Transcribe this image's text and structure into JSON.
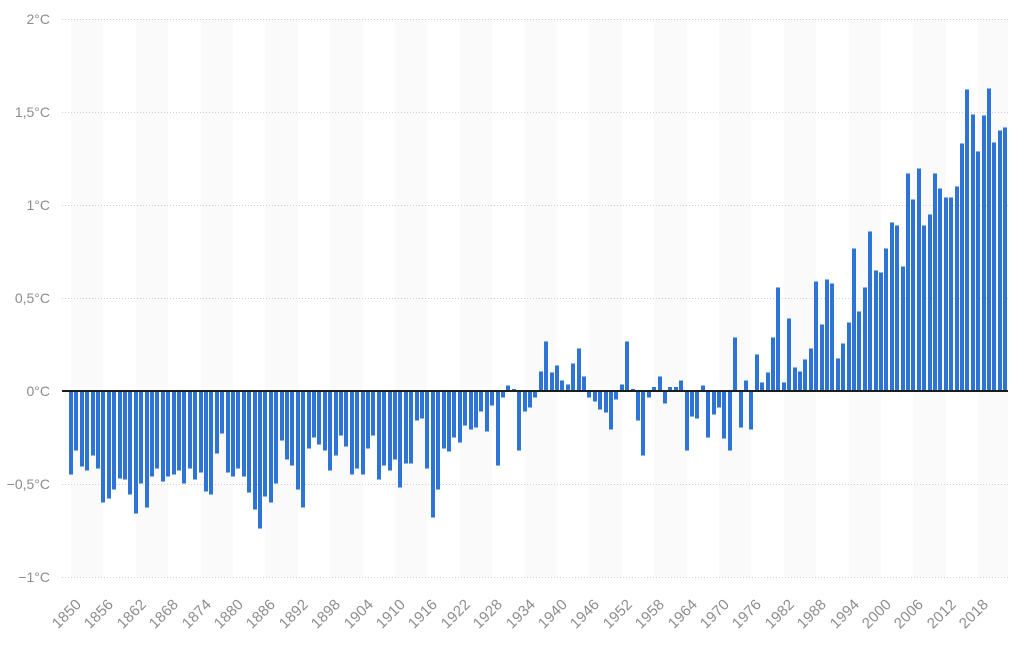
{
  "chart_data": {
    "type": "bar",
    "title": "",
    "xlabel": "",
    "ylabel": "",
    "unit": "°C",
    "ylim": [
      -1,
      2
    ],
    "grid": "dotted horizontal lines at every 0.5°C, alternating light vertical 6-year bands",
    "legend": "none",
    "y_ticks": [
      {
        "label": "2°C",
        "value": 2
      },
      {
        "label": "1,5°C",
        "value": 1.5
      },
      {
        "label": "1°C",
        "value": 1
      },
      {
        "label": "0,5°C",
        "value": 0.5
      },
      {
        "label": "0°C",
        "value": 0
      },
      {
        "label": "−0,5°C",
        "value": -0.5
      },
      {
        "label": "−1°C",
        "value": -1
      }
    ],
    "x_ticks": [
      1850,
      1856,
      1862,
      1868,
      1874,
      1880,
      1886,
      1892,
      1898,
      1904,
      1910,
      1916,
      1922,
      1928,
      1934,
      1940,
      1946,
      1952,
      1958,
      1964,
      1970,
      1976,
      1982,
      1988,
      1994,
      2000,
      2006,
      2012,
      2018
    ],
    "start_year": 1850,
    "end_year": 2023,
    "values": [
      -0.45,
      -0.32,
      -0.41,
      -0.43,
      -0.35,
      -0.42,
      -0.6,
      -0.58,
      -0.53,
      -0.47,
      -0.48,
      -0.56,
      -0.66,
      -0.5,
      -0.63,
      -0.46,
      -0.42,
      -0.49,
      -0.46,
      -0.45,
      -0.43,
      -0.5,
      -0.42,
      -0.48,
      -0.44,
      -0.54,
      -0.56,
      -0.34,
      -0.23,
      -0.44,
      -0.46,
      -0.42,
      -0.46,
      -0.55,
      -0.64,
      -0.74,
      -0.57,
      -0.6,
      -0.5,
      -0.27,
      -0.37,
      -0.4,
      -0.53,
      -0.63,
      -0.31,
      -0.25,
      -0.29,
      -0.32,
      -0.43,
      -0.35,
      -0.24,
      -0.3,
      -0.45,
      -0.42,
      -0.45,
      -0.31,
      -0.24,
      -0.48,
      -0.4,
      -0.43,
      -0.37,
      -0.52,
      -0.39,
      -0.39,
      -0.16,
      -0.15,
      -0.42,
      -0.68,
      -0.53,
      -0.31,
      -0.33,
      -0.25,
      -0.28,
      -0.19,
      -0.21,
      -0.2,
      -0.11,
      -0.22,
      -0.08,
      -0.4,
      -0.04,
      0.03,
      0.01,
      -0.32,
      -0.11,
      -0.09,
      -0.04,
      0.11,
      0.27,
      0.1,
      0.14,
      0.06,
      0.04,
      0.15,
      0.23,
      0.08,
      -0.04,
      -0.06,
      -0.1,
      -0.12,
      -0.21,
      -0.05,
      0.04,
      0.27,
      0.01,
      -0.16,
      -0.35,
      -0.04,
      0.02,
      0.08,
      -0.07,
      0.02,
      0.02,
      0.06,
      -0.32,
      -0.14,
      -0.15,
      0.03,
      -0.25,
      -0.13,
      -0.09,
      -0.26,
      -0.32,
      0.29,
      -0.2,
      0.06,
      -0.21,
      0.2,
      0.05,
      0.1,
      0.29,
      0.56,
      0.05,
      0.39,
      0.13,
      0.11,
      0.17,
      0.23,
      0.59,
      0.36,
      0.6,
      0.58,
      0.18,
      0.26,
      0.37,
      0.77,
      0.43,
      0.56,
      0.86,
      0.65,
      0.64,
      0.77,
      0.91,
      0.89,
      0.67,
      1.17,
      1.03,
      1.2,
      0.89,
      0.95,
      1.17,
      1.09,
      1.04,
      1.04,
      1.1,
      1.33,
      1.62,
      1.49,
      1.29,
      1.48,
      1.63,
      1.34,
      1.4,
      1.42
    ],
    "colors": {
      "bar": "#2e73d6",
      "bar_cap": "#8fb4ea",
      "stripe": "#fafafa",
      "grid_dot": "#cccccc",
      "zero_line": "#1c1c1c",
      "tick_label": "#8c8c8c",
      "background": "#ffffff"
    },
    "stripe_band_years": 6,
    "first_band_shaded": true
  }
}
